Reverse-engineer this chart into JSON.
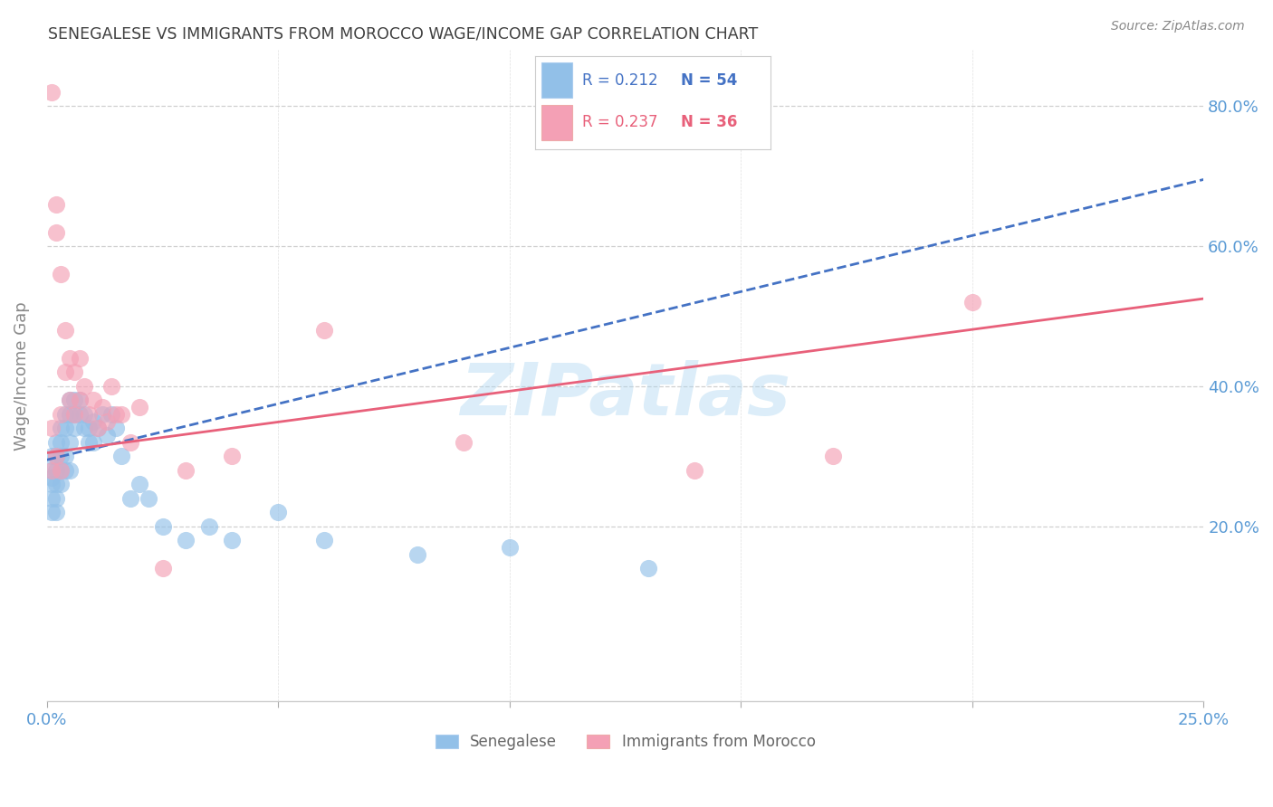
{
  "title": "SENEGALESE VS IMMIGRANTS FROM MOROCCO WAGE/INCOME GAP CORRELATION CHART",
  "source": "Source: ZipAtlas.com",
  "ylabel": "Wage/Income Gap",
  "xlim": [
    0.0,
    0.25
  ],
  "ylim": [
    -0.05,
    0.88
  ],
  "watermark": "ZIPatlas",
  "legend_r1": "R = 0.212",
  "legend_n1": "N = 54",
  "legend_r2": "R = 0.237",
  "legend_n2": "N = 36",
  "blue_color": "#92C0E8",
  "pink_color": "#F4A0B5",
  "line_blue": "#4472C4",
  "line_pink": "#E8607A",
  "title_color": "#404040",
  "axis_label_color": "#5B9BD5",
  "ytick_vals": [
    0.2,
    0.4,
    0.6,
    0.8
  ],
  "ytick_labels": [
    "20.0%",
    "40.0%",
    "60.0%",
    "80.0%"
  ],
  "blue_trend_x0": 0.0,
  "blue_trend_x1": 0.25,
  "blue_trend_y0": 0.295,
  "blue_trend_y1": 0.695,
  "pink_trend_x0": 0.0,
  "pink_trend_x1": 0.25,
  "pink_trend_y0": 0.305,
  "pink_trend_y1": 0.525,
  "blue_x": [
    0.001,
    0.001,
    0.001,
    0.001,
    0.001,
    0.001,
    0.002,
    0.002,
    0.002,
    0.002,
    0.002,
    0.002,
    0.003,
    0.003,
    0.003,
    0.003,
    0.003,
    0.004,
    0.004,
    0.004,
    0.004,
    0.005,
    0.005,
    0.005,
    0.005,
    0.006,
    0.006,
    0.006,
    0.007,
    0.007,
    0.008,
    0.008,
    0.009,
    0.009,
    0.01,
    0.01,
    0.011,
    0.012,
    0.013,
    0.014,
    0.015,
    0.016,
    0.018,
    0.02,
    0.022,
    0.025,
    0.03,
    0.035,
    0.04,
    0.05,
    0.06,
    0.08,
    0.1,
    0.13
  ],
  "blue_y": [
    0.3,
    0.28,
    0.27,
    0.26,
    0.24,
    0.22,
    0.32,
    0.3,
    0.28,
    0.26,
    0.24,
    0.22,
    0.34,
    0.32,
    0.3,
    0.28,
    0.26,
    0.36,
    0.34,
    0.3,
    0.28,
    0.38,
    0.36,
    0.32,
    0.28,
    0.38,
    0.36,
    0.34,
    0.38,
    0.36,
    0.36,
    0.34,
    0.34,
    0.32,
    0.35,
    0.32,
    0.34,
    0.36,
    0.33,
    0.36,
    0.34,
    0.3,
    0.24,
    0.26,
    0.24,
    0.2,
    0.18,
    0.2,
    0.18,
    0.22,
    0.18,
    0.16,
    0.17,
    0.14
  ],
  "pink_x": [
    0.001,
    0.001,
    0.001,
    0.002,
    0.002,
    0.002,
    0.003,
    0.003,
    0.003,
    0.004,
    0.004,
    0.005,
    0.005,
    0.006,
    0.006,
    0.007,
    0.007,
    0.008,
    0.009,
    0.01,
    0.011,
    0.012,
    0.013,
    0.014,
    0.015,
    0.016,
    0.018,
    0.02,
    0.025,
    0.03,
    0.04,
    0.06,
    0.09,
    0.14,
    0.17,
    0.2
  ],
  "pink_y": [
    0.82,
    0.34,
    0.28,
    0.66,
    0.62,
    0.3,
    0.56,
    0.36,
    0.28,
    0.48,
    0.42,
    0.44,
    0.38,
    0.42,
    0.36,
    0.44,
    0.38,
    0.4,
    0.36,
    0.38,
    0.34,
    0.37,
    0.35,
    0.4,
    0.36,
    0.36,
    0.32,
    0.37,
    0.14,
    0.28,
    0.3,
    0.48,
    0.32,
    0.28,
    0.3,
    0.52
  ]
}
